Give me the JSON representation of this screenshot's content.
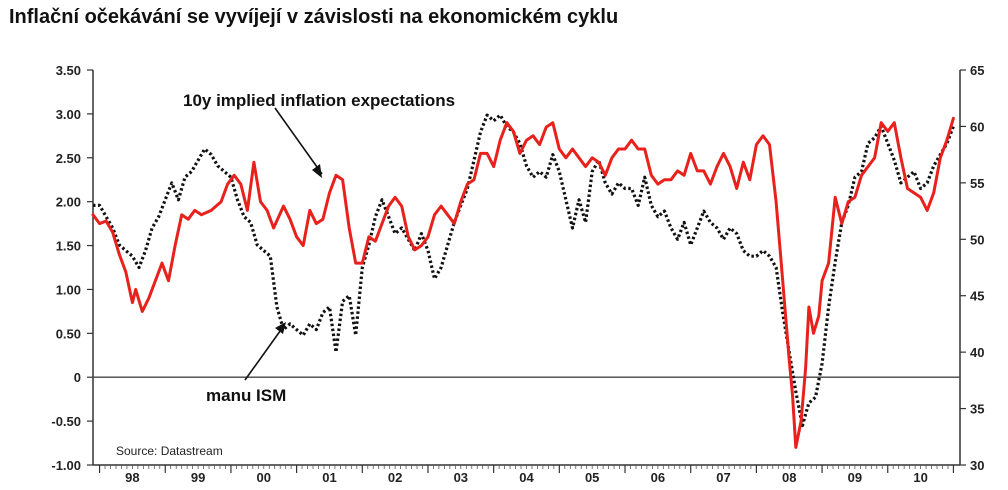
{
  "page": {
    "title": "Inflační očekávání se vyvíjejí v závislosti na ekonomickém cyklu"
  },
  "chart_data": {
    "type": "line",
    "title": "Inflační očekávání se vyvíjejí v závislosti na ekonomickém cyklu",
    "source": "Source: Datastream",
    "x_ticks": [
      "98",
      "99",
      "00",
      "01",
      "02",
      "03",
      "04",
      "05",
      "06",
      "07",
      "08",
      "09",
      "10"
    ],
    "x_range": [
      1997.9,
      2011.1
    ],
    "y_left": {
      "range": [
        -1.0,
        3.5
      ],
      "ticks": [
        -1.0,
        -0.5,
        0,
        0.5,
        1.0,
        1.5,
        2.0,
        2.5,
        3.0,
        3.5
      ],
      "tick_labels": [
        "-1.00",
        "-0.50",
        "0",
        "0.50",
        "1.00",
        "1.50",
        "2.00",
        "2.50",
        "3.00",
        "3.50"
      ]
    },
    "y_right": {
      "range": [
        30,
        65
      ],
      "ticks": [
        30,
        35,
        40,
        45,
        50,
        55,
        60,
        65
      ],
      "tick_labels": [
        "30",
        "35",
        "40",
        "45",
        "50",
        "55",
        "60",
        "65"
      ]
    },
    "zero_line": true,
    "annotations": [
      {
        "text": "10y implied inflation expectations",
        "series": "10y implied inflation expectations"
      },
      {
        "text": "manu ISM",
        "series": "manu ISM"
      }
    ],
    "series": [
      {
        "name": "10y implied inflation expectations",
        "axis": "left",
        "color": "#e8211c",
        "style": "solid",
        "points": [
          [
            1997.9,
            1.85
          ],
          [
            1998.0,
            1.75
          ],
          [
            1998.1,
            1.78
          ],
          [
            1998.2,
            1.65
          ],
          [
            1998.3,
            1.4
          ],
          [
            1998.4,
            1.2
          ],
          [
            1998.5,
            0.85
          ],
          [
            1998.55,
            1.0
          ],
          [
            1998.65,
            0.75
          ],
          [
            1998.75,
            0.9
          ],
          [
            1998.85,
            1.1
          ],
          [
            1998.95,
            1.3
          ],
          [
            1999.05,
            1.1
          ],
          [
            1999.15,
            1.5
          ],
          [
            1999.25,
            1.85
          ],
          [
            1999.35,
            1.8
          ],
          [
            1999.45,
            1.9
          ],
          [
            1999.55,
            1.85
          ],
          [
            1999.7,
            1.9
          ],
          [
            1999.85,
            2.0
          ],
          [
            1999.95,
            2.2
          ],
          [
            2000.05,
            2.3
          ],
          [
            2000.15,
            2.2
          ],
          [
            2000.25,
            1.9
          ],
          [
            2000.35,
            2.45
          ],
          [
            2000.45,
            2.0
          ],
          [
            2000.55,
            1.9
          ],
          [
            2000.65,
            1.7
          ],
          [
            2000.8,
            1.95
          ],
          [
            2000.9,
            1.8
          ],
          [
            2001.0,
            1.6
          ],
          [
            2001.1,
            1.5
          ],
          [
            2001.2,
            1.9
          ],
          [
            2001.3,
            1.75
          ],
          [
            2001.4,
            1.8
          ],
          [
            2001.5,
            2.1
          ],
          [
            2001.6,
            2.3
          ],
          [
            2001.7,
            2.25
          ],
          [
            2001.8,
            1.7
          ],
          [
            2001.9,
            1.3
          ],
          [
            2002.0,
            1.3
          ],
          [
            2002.1,
            1.6
          ],
          [
            2002.2,
            1.55
          ],
          [
            2002.3,
            1.75
          ],
          [
            2002.4,
            1.95
          ],
          [
            2002.5,
            2.05
          ],
          [
            2002.6,
            1.95
          ],
          [
            2002.7,
            1.6
          ],
          [
            2002.8,
            1.45
          ],
          [
            2002.9,
            1.5
          ],
          [
            2003.0,
            1.6
          ],
          [
            2003.1,
            1.85
          ],
          [
            2003.2,
            1.95
          ],
          [
            2003.3,
            1.85
          ],
          [
            2003.4,
            1.75
          ],
          [
            2003.5,
            2.0
          ],
          [
            2003.6,
            2.2
          ],
          [
            2003.7,
            2.25
          ],
          [
            2003.8,
            2.55
          ],
          [
            2003.9,
            2.55
          ],
          [
            2004.0,
            2.4
          ],
          [
            2004.1,
            2.7
          ],
          [
            2004.2,
            2.9
          ],
          [
            2004.3,
            2.8
          ],
          [
            2004.4,
            2.55
          ],
          [
            2004.5,
            2.7
          ],
          [
            2004.6,
            2.75
          ],
          [
            2004.7,
            2.65
          ],
          [
            2004.8,
            2.85
          ],
          [
            2004.9,
            2.9
          ],
          [
            2005.0,
            2.6
          ],
          [
            2005.1,
            2.5
          ],
          [
            2005.2,
            2.6
          ],
          [
            2005.3,
            2.5
          ],
          [
            2005.4,
            2.4
          ],
          [
            2005.5,
            2.5
          ],
          [
            2005.6,
            2.45
          ],
          [
            2005.7,
            2.3
          ],
          [
            2005.8,
            2.5
          ],
          [
            2005.9,
            2.6
          ],
          [
            2006.0,
            2.6
          ],
          [
            2006.1,
            2.7
          ],
          [
            2006.2,
            2.6
          ],
          [
            2006.3,
            2.6
          ],
          [
            2006.4,
            2.3
          ],
          [
            2006.5,
            2.2
          ],
          [
            2006.6,
            2.25
          ],
          [
            2006.7,
            2.25
          ],
          [
            2006.8,
            2.35
          ],
          [
            2006.9,
            2.3
          ],
          [
            2007.0,
            2.55
          ],
          [
            2007.1,
            2.35
          ],
          [
            2007.2,
            2.35
          ],
          [
            2007.3,
            2.2
          ],
          [
            2007.4,
            2.4
          ],
          [
            2007.5,
            2.55
          ],
          [
            2007.6,
            2.4
          ],
          [
            2007.7,
            2.15
          ],
          [
            2007.8,
            2.45
          ],
          [
            2007.9,
            2.25
          ],
          [
            2008.0,
            2.65
          ],
          [
            2008.1,
            2.75
          ],
          [
            2008.2,
            2.65
          ],
          [
            2008.3,
            2.0
          ],
          [
            2008.4,
            1.1
          ],
          [
            2008.5,
            0.2
          ],
          [
            2008.55,
            -0.2
          ],
          [
            2008.6,
            -0.8
          ],
          [
            2008.68,
            -0.5
          ],
          [
            2008.75,
            0.1
          ],
          [
            2008.8,
            0.8
          ],
          [
            2008.87,
            0.5
          ],
          [
            2008.95,
            0.7
          ],
          [
            2009.0,
            1.1
          ],
          [
            2009.1,
            1.3
          ],
          [
            2009.2,
            2.05
          ],
          [
            2009.3,
            1.75
          ],
          [
            2009.4,
            2.0
          ],
          [
            2009.5,
            2.05
          ],
          [
            2009.6,
            2.3
          ],
          [
            2009.7,
            2.4
          ],
          [
            2009.8,
            2.5
          ],
          [
            2009.9,
            2.9
          ],
          [
            2010.0,
            2.8
          ],
          [
            2010.1,
            2.9
          ],
          [
            2010.2,
            2.5
          ],
          [
            2010.3,
            2.15
          ],
          [
            2010.4,
            2.1
          ],
          [
            2010.5,
            2.05
          ],
          [
            2010.6,
            1.9
          ],
          [
            2010.7,
            2.1
          ],
          [
            2010.8,
            2.5
          ],
          [
            2010.9,
            2.7
          ],
          [
            2011.0,
            2.95
          ]
        ]
      },
      {
        "name": "manu ISM",
        "axis": "right",
        "color": "#111111",
        "style": "dotted",
        "points": [
          [
            1997.9,
            53.0
          ],
          [
            1998.0,
            53.0
          ],
          [
            1998.1,
            52.0
          ],
          [
            1998.2,
            51.0
          ],
          [
            1998.3,
            49.5
          ],
          [
            1998.4,
            49.0
          ],
          [
            1998.5,
            48.5
          ],
          [
            1998.6,
            47.5
          ],
          [
            1998.7,
            49.0
          ],
          [
            1998.8,
            51.0
          ],
          [
            1998.9,
            52.0
          ],
          [
            1999.0,
            53.5
          ],
          [
            1999.1,
            55.0
          ],
          [
            1999.2,
            53.5
          ],
          [
            1999.3,
            55.5
          ],
          [
            1999.4,
            56.0
          ],
          [
            1999.5,
            57.0
          ],
          [
            1999.6,
            58.0
          ],
          [
            1999.7,
            57.5
          ],
          [
            1999.8,
            56.5
          ],
          [
            1999.9,
            56.0
          ],
          [
            2000.0,
            55.5
          ],
          [
            2000.1,
            53.5
          ],
          [
            2000.2,
            52.0
          ],
          [
            2000.3,
            51.5
          ],
          [
            2000.4,
            49.5
          ],
          [
            2000.5,
            49.0
          ],
          [
            2000.6,
            48.5
          ],
          [
            2000.7,
            44.0
          ],
          [
            2000.8,
            42.0
          ],
          [
            2000.9,
            42.5
          ],
          [
            2001.0,
            42.0
          ],
          [
            2001.1,
            41.5
          ],
          [
            2001.2,
            42.5
          ],
          [
            2001.3,
            42.0
          ],
          [
            2001.4,
            43.5
          ],
          [
            2001.5,
            44.0
          ],
          [
            2001.6,
            40.0
          ],
          [
            2001.7,
            44.5
          ],
          [
            2001.8,
            45.0
          ],
          [
            2001.9,
            41.5
          ],
          [
            2002.0,
            47.5
          ],
          [
            2002.1,
            49.5
          ],
          [
            2002.2,
            52.0
          ],
          [
            2002.3,
            53.5
          ],
          [
            2002.4,
            52.0
          ],
          [
            2002.5,
            50.5
          ],
          [
            2002.6,
            51.0
          ],
          [
            2002.7,
            50.0
          ],
          [
            2002.8,
            49.0
          ],
          [
            2002.9,
            50.5
          ],
          [
            2003.0,
            49.0
          ],
          [
            2003.1,
            46.5
          ],
          [
            2003.2,
            47.5
          ],
          [
            2003.3,
            49.5
          ],
          [
            2003.4,
            51.5
          ],
          [
            2003.5,
            53.0
          ],
          [
            2003.6,
            54.5
          ],
          [
            2003.7,
            57.0
          ],
          [
            2003.8,
            59.5
          ],
          [
            2003.9,
            61.0
          ],
          [
            2004.0,
            60.5
          ],
          [
            2004.1,
            61.0
          ],
          [
            2004.2,
            60.0
          ],
          [
            2004.3,
            59.5
          ],
          [
            2004.4,
            58.5
          ],
          [
            2004.5,
            56.5
          ],
          [
            2004.6,
            55.5
          ],
          [
            2004.7,
            56.0
          ],
          [
            2004.8,
            55.5
          ],
          [
            2004.9,
            57.5
          ],
          [
            2005.0,
            56.0
          ],
          [
            2005.1,
            53.5
          ],
          [
            2005.2,
            51.0
          ],
          [
            2005.3,
            53.5
          ],
          [
            2005.4,
            51.5
          ],
          [
            2005.5,
            56.0
          ],
          [
            2005.6,
            57.0
          ],
          [
            2005.7,
            55.0
          ],
          [
            2005.8,
            54.0
          ],
          [
            2005.9,
            55.0
          ],
          [
            2006.0,
            54.5
          ],
          [
            2006.1,
            54.5
          ],
          [
            2006.2,
            53.0
          ],
          [
            2006.3,
            55.5
          ],
          [
            2006.4,
            53.0
          ],
          [
            2006.5,
            52.0
          ],
          [
            2006.6,
            52.5
          ],
          [
            2006.7,
            51.0
          ],
          [
            2006.8,
            50.0
          ],
          [
            2006.9,
            51.5
          ],
          [
            2007.0,
            49.5
          ],
          [
            2007.1,
            51.0
          ],
          [
            2007.2,
            52.5
          ],
          [
            2007.3,
            51.5
          ],
          [
            2007.4,
            51.0
          ],
          [
            2007.5,
            50.0
          ],
          [
            2007.6,
            51.0
          ],
          [
            2007.7,
            50.5
          ],
          [
            2007.8,
            49.0
          ],
          [
            2007.9,
            48.5
          ],
          [
            2008.0,
            48.5
          ],
          [
            2008.1,
            49.0
          ],
          [
            2008.2,
            48.5
          ],
          [
            2008.3,
            47.5
          ],
          [
            2008.4,
            43.5
          ],
          [
            2008.5,
            40.0
          ],
          [
            2008.6,
            36.5
          ],
          [
            2008.7,
            33.5
          ],
          [
            2008.8,
            35.5
          ],
          [
            2008.9,
            36.0
          ],
          [
            2009.0,
            39.0
          ],
          [
            2009.1,
            44.0
          ],
          [
            2009.2,
            48.0
          ],
          [
            2009.3,
            51.5
          ],
          [
            2009.4,
            53.0
          ],
          [
            2009.5,
            55.5
          ],
          [
            2009.6,
            56.0
          ],
          [
            2009.7,
            58.5
          ],
          [
            2009.8,
            59.0
          ],
          [
            2009.9,
            60.0
          ],
          [
            2010.0,
            58.5
          ],
          [
            2010.1,
            57.0
          ],
          [
            2010.2,
            55.0
          ],
          [
            2010.3,
            55.5
          ],
          [
            2010.4,
            56.0
          ],
          [
            2010.5,
            54.5
          ],
          [
            2010.6,
            55.0
          ],
          [
            2010.7,
            56.5
          ],
          [
            2010.8,
            57.5
          ],
          [
            2010.9,
            58.5
          ],
          [
            2011.0,
            60.0
          ]
        ]
      }
    ]
  }
}
